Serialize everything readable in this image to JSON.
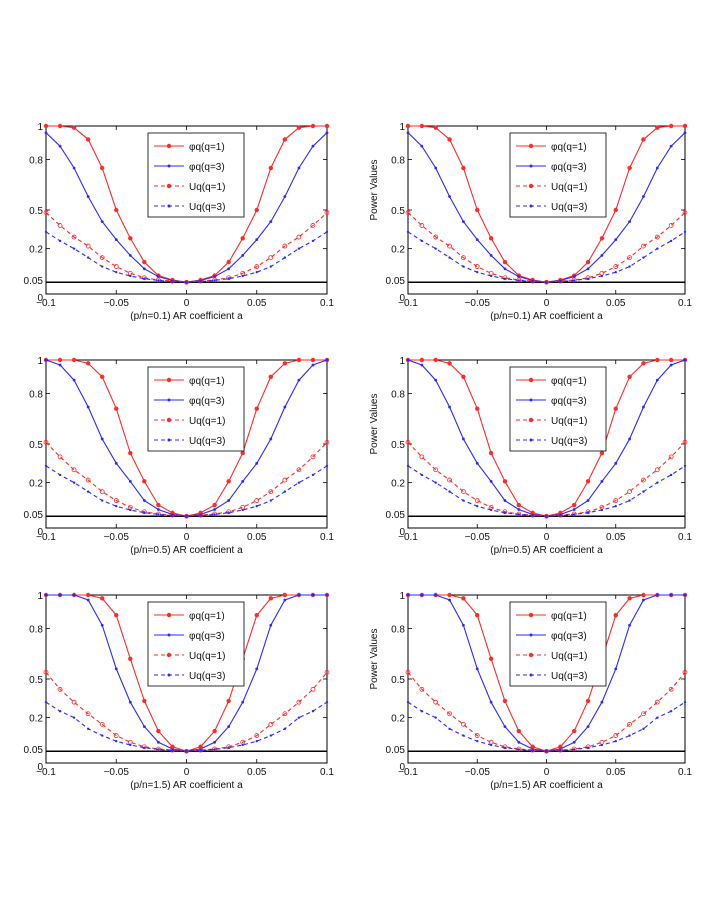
{
  "colors": {
    "phi": "#ff2a2a",
    "phi3": "#2a2aff",
    "axis": "#000000",
    "baseline": "#000000"
  },
  "chart_data": [
    {
      "type": "line",
      "xlabel": "(p/n=0.1) AR coefficient a",
      "ylabel": "",
      "xlim": [
        -0.1,
        0.1
      ],
      "ylim": [
        0,
        1
      ],
      "yticks": [
        "1",
        "0.8",
        "0.5",
        "0.2",
        "0.05",
        "0"
      ],
      "xticks": [
        "−0.1",
        "−0.05",
        "0",
        "0.05",
        "0.1"
      ],
      "legend": [
        "φq(q=1)",
        "φq(q=3)",
        "Uq(q=1)",
        "Uq(q=3)"
      ],
      "legend_position": "top-center",
      "baseline": 0.05,
      "x": [
        -0.1,
        -0.09,
        -0.08,
        -0.07,
        -0.06,
        -0.05,
        -0.04,
        -0.03,
        -0.02,
        -0.01,
        0,
        0.01,
        0.02,
        0.03,
        0.04,
        0.05,
        0.06,
        0.07,
        0.08,
        0.09,
        0.1
      ],
      "series": [
        {
          "name": "φq(q=1)",
          "style": "solid",
          "color": "#ff2a2a",
          "values": [
            1,
            1,
            0.99,
            0.92,
            0.75,
            0.5,
            0.28,
            0.14,
            0.08,
            0.06,
            0.05,
            0.06,
            0.08,
            0.14,
            0.28,
            0.5,
            0.75,
            0.92,
            0.99,
            1,
            1
          ]
        },
        {
          "name": "φq(q=3)",
          "style": "solid",
          "color": "#2a2aff",
          "values": [
            0.96,
            0.88,
            0.75,
            0.58,
            0.41,
            0.27,
            0.17,
            0.11,
            0.075,
            0.058,
            0.05,
            0.058,
            0.075,
            0.11,
            0.17,
            0.27,
            0.41,
            0.58,
            0.75,
            0.88,
            0.96
          ]
        },
        {
          "name": "Uq(q=1)",
          "style": "dashed",
          "color": "#ff2a2a",
          "values": [
            0.48,
            0.38,
            0.29,
            0.22,
            0.16,
            0.12,
            0.09,
            0.07,
            0.06,
            0.055,
            0.05,
            0.055,
            0.06,
            0.07,
            0.09,
            0.12,
            0.16,
            0.22,
            0.29,
            0.38,
            0.48
          ]
        },
        {
          "name": "Uq(q=3)",
          "style": "dashed",
          "color": "#2a2aff",
          "values": [
            0.33,
            0.26,
            0.2,
            0.16,
            0.12,
            0.095,
            0.078,
            0.066,
            0.058,
            0.053,
            0.05,
            0.053,
            0.058,
            0.066,
            0.078,
            0.095,
            0.12,
            0.16,
            0.2,
            0.26,
            0.33
          ]
        }
      ]
    },
    {
      "type": "line",
      "xlabel": "(p/n=0.1) AR coefficient a",
      "ylabel": "Power Values",
      "xlim": [
        -0.1,
        0.1
      ],
      "ylim": [
        0,
        1
      ],
      "yticks": [
        "1",
        "0.8",
        "0.5",
        "0.2",
        "0.05",
        "0"
      ],
      "xticks": [
        "−0.1",
        "−0.05",
        "0",
        "0.05",
        "0.1"
      ],
      "legend": [
        "φq(q=1)",
        "φq(q=3)",
        "Uq(q=1)",
        "Uq(q=3)"
      ],
      "legend_position": "top-center",
      "baseline": 0.05,
      "x": [
        -0.1,
        -0.09,
        -0.08,
        -0.07,
        -0.06,
        -0.05,
        -0.04,
        -0.03,
        -0.02,
        -0.01,
        0,
        0.01,
        0.02,
        0.03,
        0.04,
        0.05,
        0.06,
        0.07,
        0.08,
        0.09,
        0.1
      ],
      "series": [
        {
          "name": "φq(q=1)",
          "style": "solid",
          "color": "#ff2a2a",
          "values": [
            1,
            1,
            0.99,
            0.92,
            0.75,
            0.5,
            0.28,
            0.14,
            0.08,
            0.06,
            0.05,
            0.06,
            0.08,
            0.14,
            0.28,
            0.5,
            0.75,
            0.92,
            0.99,
            1,
            1
          ]
        },
        {
          "name": "φq(q=3)",
          "style": "solid",
          "color": "#2a2aff",
          "values": [
            0.96,
            0.88,
            0.75,
            0.58,
            0.41,
            0.27,
            0.17,
            0.11,
            0.075,
            0.058,
            0.05,
            0.058,
            0.075,
            0.11,
            0.17,
            0.27,
            0.41,
            0.58,
            0.75,
            0.88,
            0.96
          ]
        },
        {
          "name": "Uq(q=1)",
          "style": "dashed",
          "color": "#ff2a2a",
          "values": [
            0.48,
            0.38,
            0.29,
            0.22,
            0.16,
            0.12,
            0.09,
            0.07,
            0.06,
            0.055,
            0.05,
            0.055,
            0.06,
            0.07,
            0.09,
            0.12,
            0.16,
            0.22,
            0.29,
            0.38,
            0.48
          ]
        },
        {
          "name": "Uq(q=3)",
          "style": "dashed",
          "color": "#2a2aff",
          "values": [
            0.33,
            0.26,
            0.2,
            0.16,
            0.12,
            0.095,
            0.078,
            0.066,
            0.058,
            0.053,
            0.05,
            0.053,
            0.058,
            0.066,
            0.078,
            0.095,
            0.12,
            0.16,
            0.2,
            0.26,
            0.33
          ]
        }
      ]
    },
    {
      "type": "line",
      "xlabel": "(p/n=0.5) AR coefficient a",
      "ylabel": "",
      "xlim": [
        -0.1,
        0.1
      ],
      "ylim": [
        0,
        1
      ],
      "yticks": [
        "1",
        "0.8",
        "0.5",
        "0.2",
        "0.05",
        "0"
      ],
      "xticks": [
        "−0.1",
        "−0.05",
        "0",
        "0.05",
        "0.1"
      ],
      "legend": [
        "φq(q=1)",
        "φq(q=3)",
        "Uq(q=1)",
        "Uq(q=3)"
      ],
      "legend_position": "top-center",
      "baseline": 0.05,
      "x": [
        -0.1,
        -0.09,
        -0.08,
        -0.07,
        -0.06,
        -0.05,
        -0.04,
        -0.03,
        -0.02,
        -0.01,
        0,
        0.01,
        0.02,
        0.03,
        0.04,
        0.05,
        0.06,
        0.07,
        0.08,
        0.09,
        0.1
      ],
      "series": [
        {
          "name": "φq(q=1)",
          "style": "solid",
          "color": "#ff2a2a",
          "values": [
            1,
            1,
            1,
            0.98,
            0.9,
            0.71,
            0.43,
            0.21,
            0.1,
            0.065,
            0.05,
            0.065,
            0.1,
            0.21,
            0.43,
            0.71,
            0.9,
            0.98,
            1,
            1,
            1
          ]
        },
        {
          "name": "φq(q=3)",
          "style": "solid",
          "color": "#2a2aff",
          "values": [
            1,
            0.97,
            0.88,
            0.72,
            0.53,
            0.35,
            0.21,
            0.12,
            0.08,
            0.058,
            0.05,
            0.058,
            0.08,
            0.12,
            0.21,
            0.35,
            0.53,
            0.72,
            0.88,
            0.97,
            1
          ]
        },
        {
          "name": "Uq(q=1)",
          "style": "dashed",
          "color": "#ff2a2a",
          "values": [
            0.51,
            0.4,
            0.3,
            0.22,
            0.16,
            0.12,
            0.09,
            0.07,
            0.06,
            0.055,
            0.05,
            0.055,
            0.06,
            0.07,
            0.09,
            0.12,
            0.16,
            0.22,
            0.3,
            0.4,
            0.51
          ]
        },
        {
          "name": "Uq(q=3)",
          "style": "dashed",
          "color": "#2a2aff",
          "values": [
            0.33,
            0.26,
            0.2,
            0.16,
            0.12,
            0.095,
            0.078,
            0.066,
            0.058,
            0.053,
            0.05,
            0.053,
            0.058,
            0.066,
            0.078,
            0.095,
            0.12,
            0.16,
            0.2,
            0.26,
            0.33
          ]
        }
      ]
    },
    {
      "type": "line",
      "xlabel": "(p/n=0.5) AR coefficient a",
      "ylabel": "Power Values",
      "xlim": [
        -0.1,
        0.1
      ],
      "ylim": [
        0,
        1
      ],
      "yticks": [
        "1",
        "0.8",
        "0.5",
        "0.2",
        "0.05",
        "0"
      ],
      "xticks": [
        "−0.1",
        "−0.05",
        "0",
        "0.05",
        "0.1"
      ],
      "legend": [
        "φq(q=1)",
        "φq(q=3)",
        "Uq(q=1)",
        "Uq(q=3)"
      ],
      "legend_position": "top-center",
      "baseline": 0.05,
      "x": [
        -0.1,
        -0.09,
        -0.08,
        -0.07,
        -0.06,
        -0.05,
        -0.04,
        -0.03,
        -0.02,
        -0.01,
        0,
        0.01,
        0.02,
        0.03,
        0.04,
        0.05,
        0.06,
        0.07,
        0.08,
        0.09,
        0.1
      ],
      "series": [
        {
          "name": "φq(q=1)",
          "style": "solid",
          "color": "#ff2a2a",
          "values": [
            1,
            1,
            1,
            0.98,
            0.9,
            0.71,
            0.43,
            0.21,
            0.1,
            0.065,
            0.05,
            0.065,
            0.1,
            0.21,
            0.43,
            0.71,
            0.9,
            0.98,
            1,
            1,
            1
          ]
        },
        {
          "name": "φq(q=3)",
          "style": "solid",
          "color": "#2a2aff",
          "values": [
            1,
            0.97,
            0.88,
            0.72,
            0.53,
            0.35,
            0.21,
            0.12,
            0.08,
            0.058,
            0.05,
            0.058,
            0.08,
            0.12,
            0.21,
            0.35,
            0.53,
            0.72,
            0.88,
            0.97,
            1
          ]
        },
        {
          "name": "Uq(q=1)",
          "style": "dashed",
          "color": "#ff2a2a",
          "values": [
            0.51,
            0.4,
            0.3,
            0.22,
            0.16,
            0.12,
            0.09,
            0.07,
            0.06,
            0.055,
            0.05,
            0.055,
            0.06,
            0.07,
            0.09,
            0.12,
            0.16,
            0.22,
            0.3,
            0.4,
            0.51
          ]
        },
        {
          "name": "Uq(q=3)",
          "style": "dashed",
          "color": "#2a2aff",
          "values": [
            0.33,
            0.26,
            0.2,
            0.16,
            0.12,
            0.095,
            0.078,
            0.066,
            0.058,
            0.053,
            0.05,
            0.053,
            0.058,
            0.066,
            0.078,
            0.095,
            0.12,
            0.16,
            0.2,
            0.26,
            0.33
          ]
        }
      ]
    },
    {
      "type": "line",
      "xlabel": "(p/n=1.5) AR coefficient a",
      "ylabel": "",
      "xlim": [
        -0.1,
        0.1
      ],
      "ylim": [
        0,
        1
      ],
      "yticks": [
        "1",
        "0.8",
        "0.5",
        "0.2",
        "0.05",
        "0"
      ],
      "xticks": [
        "−0.1",
        "−0.05",
        "0",
        "0.05",
        "0.1"
      ],
      "legend": [
        "φq(q=1)",
        "φq(q=3)",
        "Uq(q=1)",
        "Uq(q=3)"
      ],
      "legend_position": "top-center",
      "baseline": 0.05,
      "x": [
        -0.1,
        -0.09,
        -0.08,
        -0.07,
        -0.06,
        -0.05,
        -0.04,
        -0.03,
        -0.02,
        -0.01,
        0,
        0.01,
        0.02,
        0.03,
        0.04,
        0.05,
        0.06,
        0.07,
        0.08,
        0.09,
        0.1
      ],
      "series": [
        {
          "name": "φq(q=1)",
          "style": "solid",
          "color": "#ff2a2a",
          "values": [
            1,
            1,
            1,
            1,
            0.98,
            0.88,
            0.62,
            0.33,
            0.14,
            0.07,
            0.05,
            0.07,
            0.14,
            0.33,
            0.62,
            0.88,
            0.98,
            1,
            1,
            1,
            1
          ]
        },
        {
          "name": "φq(q=3)",
          "style": "solid",
          "color": "#2a2aff",
          "values": [
            1,
            1,
            1,
            0.97,
            0.82,
            0.56,
            0.32,
            0.16,
            0.09,
            0.06,
            0.05,
            0.06,
            0.09,
            0.16,
            0.32,
            0.56,
            0.82,
            0.97,
            1,
            1,
            1
          ]
        },
        {
          "name": "Uq(q=1)",
          "style": "dashed",
          "color": "#ff2a2a",
          "values": [
            0.54,
            0.42,
            0.32,
            0.23,
            0.17,
            0.12,
            0.09,
            0.07,
            0.06,
            0.055,
            0.05,
            0.055,
            0.06,
            0.07,
            0.09,
            0.12,
            0.17,
            0.23,
            0.32,
            0.42,
            0.54
          ]
        },
        {
          "name": "Uq(q=3)",
          "style": "dashed",
          "color": "#2a2aff",
          "values": [
            0.32,
            0.25,
            0.2,
            0.15,
            0.12,
            0.095,
            0.078,
            0.066,
            0.058,
            0.053,
            0.05,
            0.053,
            0.058,
            0.066,
            0.078,
            0.095,
            0.12,
            0.15,
            0.2,
            0.25,
            0.32
          ]
        }
      ]
    },
    {
      "type": "line",
      "xlabel": "(p/n=1.5) AR coefficient a",
      "ylabel": "Power Values",
      "xlim": [
        -0.1,
        0.1
      ],
      "ylim": [
        0,
        1
      ],
      "yticks": [
        "1",
        "0.8",
        "0.5",
        "0.2",
        "0.05",
        "0"
      ],
      "xticks": [
        "−0.1",
        "−0.05",
        "0",
        "0.05",
        "0.1"
      ],
      "legend": [
        "φq(q=1)",
        "φq(q=3)",
        "Uq(q=1)",
        "Uq(q=3)"
      ],
      "legend_position": "top-center",
      "baseline": 0.05,
      "x": [
        -0.1,
        -0.09,
        -0.08,
        -0.07,
        -0.06,
        -0.05,
        -0.04,
        -0.03,
        -0.02,
        -0.01,
        0,
        0.01,
        0.02,
        0.03,
        0.04,
        0.05,
        0.06,
        0.07,
        0.08,
        0.09,
        0.1
      ],
      "series": [
        {
          "name": "φq(q=1)",
          "style": "solid",
          "color": "#ff2a2a",
          "values": [
            1,
            1,
            1,
            1,
            0.98,
            0.88,
            0.62,
            0.33,
            0.14,
            0.07,
            0.05,
            0.07,
            0.14,
            0.33,
            0.62,
            0.88,
            0.98,
            1,
            1,
            1,
            1
          ]
        },
        {
          "name": "φq(q=3)",
          "style": "solid",
          "color": "#2a2aff",
          "values": [
            1,
            1,
            1,
            0.97,
            0.82,
            0.56,
            0.32,
            0.16,
            0.09,
            0.06,
            0.05,
            0.06,
            0.09,
            0.16,
            0.32,
            0.56,
            0.82,
            0.97,
            1,
            1,
            1
          ]
        },
        {
          "name": "Uq(q=1)",
          "style": "dashed",
          "color": "#ff2a2a",
          "values": [
            0.54,
            0.42,
            0.32,
            0.23,
            0.17,
            0.12,
            0.09,
            0.07,
            0.06,
            0.055,
            0.05,
            0.055,
            0.06,
            0.07,
            0.09,
            0.12,
            0.17,
            0.23,
            0.32,
            0.42,
            0.54
          ]
        },
        {
          "name": "Uq(q=3)",
          "style": "dashed",
          "color": "#2a2aff",
          "values": [
            0.32,
            0.25,
            0.2,
            0.15,
            0.12,
            0.095,
            0.078,
            0.066,
            0.058,
            0.053,
            0.05,
            0.053,
            0.058,
            0.066,
            0.078,
            0.095,
            0.12,
            0.15,
            0.2,
            0.25,
            0.32
          ]
        }
      ]
    }
  ]
}
